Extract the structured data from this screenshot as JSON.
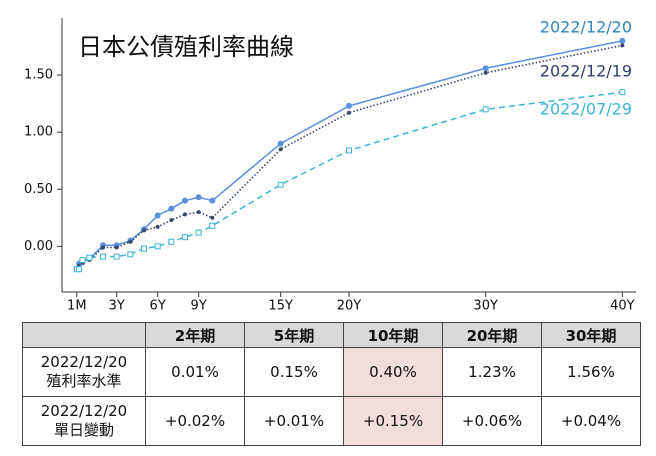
{
  "chart_data": {
    "type": "line",
    "title": "日本公債殖利率曲線",
    "x": [
      0.083,
      0.25,
      0.5,
      1,
      2,
      3,
      4,
      5,
      6,
      7,
      8,
      9,
      10,
      15,
      20,
      30,
      40
    ],
    "series": [
      {
        "name": "2022/12/20",
        "color": "#5b8fe0",
        "label_color": "#2e86c1",
        "line_style": "solid",
        "marker": "circle",
        "values": [
          -0.2,
          -0.15,
          -0.14,
          -0.11,
          0.01,
          0.01,
          0.05,
          0.15,
          0.27,
          0.33,
          0.4,
          0.43,
          0.4,
          0.9,
          1.23,
          1.56,
          1.8
        ]
      },
      {
        "name": "2022/12/19",
        "color": "#3a4a6b",
        "label_color": "#2c3e6e",
        "line_style": "dotted",
        "marker": "dot",
        "values": [
          -0.2,
          -0.17,
          -0.14,
          -0.12,
          -0.01,
          -0.01,
          0.04,
          0.14,
          0.17,
          0.23,
          0.28,
          0.3,
          0.25,
          0.85,
          1.17,
          1.52,
          1.76
        ]
      },
      {
        "name": "2022/07/29",
        "color": "#3bb5d8",
        "label_color": "#3bb5d8",
        "line_style": "dashed",
        "marker": "square-open",
        "values": [
          -0.2,
          -0.2,
          -0.12,
          -0.1,
          -0.09,
          -0.09,
          -0.07,
          -0.02,
          0.0,
          0.04,
          0.08,
          0.12,
          0.18,
          0.54,
          0.84,
          1.2,
          1.35
        ]
      }
    ],
    "xlim": [
      -1,
      41
    ],
    "xticks": [
      {
        "value": 0.083,
        "label": "1M"
      },
      {
        "value": 3,
        "label": "3Y"
      },
      {
        "value": 6,
        "label": "6Y"
      },
      {
        "value": 9,
        "label": "9Y"
      },
      {
        "value": 15,
        "label": "15Y"
      },
      {
        "value": 20,
        "label": "20Y"
      },
      {
        "value": 30,
        "label": "30Y"
      },
      {
        "value": 40,
        "label": "40Y"
      }
    ],
    "ylim": [
      -0.4,
      2.0
    ],
    "yticks": [
      {
        "value": 0,
        "label": "0.00"
      },
      {
        "value": 0.5,
        "label": "0.50"
      },
      {
        "value": 1,
        "label": "1.00"
      },
      {
        "value": 1.5,
        "label": "1.50"
      }
    ]
  },
  "table": {
    "columns": [
      "2年期",
      "5年期",
      "10年期",
      "20年期",
      "30年期"
    ],
    "highlight_column": 2,
    "rows": [
      {
        "label": [
          "2022/12/20",
          "殖利率水準"
        ],
        "cells": [
          "0.01%",
          "0.15%",
          "0.40%",
          "1.23%",
          "1.56%"
        ]
      },
      {
        "label": [
          "2022/12/20",
          "單日變動"
        ],
        "cells": [
          "+0.02%",
          "+0.01%",
          "+0.15%",
          "+0.06%",
          "+0.04%"
        ]
      }
    ]
  }
}
